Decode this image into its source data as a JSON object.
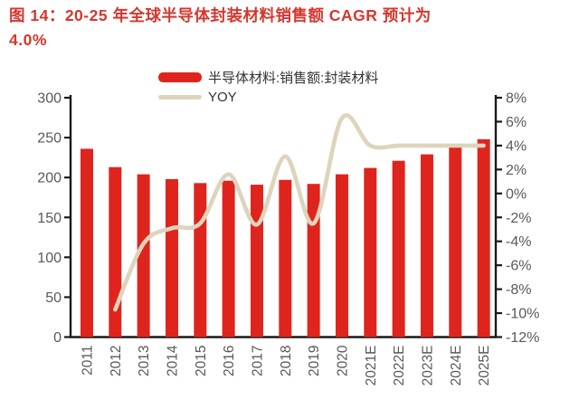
{
  "title": {
    "line1": "图 14：20-25 年全球半导体封装材料销售额 CAGR 预计为",
    "line2": "4.0%"
  },
  "legend": {
    "bar_label": "半导体材料:销售额:封装材料",
    "line_label": "YOY"
  },
  "colors": {
    "bar": "#df241d",
    "line": "#ddd4bc",
    "title": "#d6362e",
    "axis_label": "#595959",
    "spine": "#1a1a1a"
  },
  "chart_data": {
    "type": "bar",
    "title": "图 14：20-25 年全球半导体封装材料销售额 CAGR 预计为 4.0%",
    "categories": [
      "2011",
      "2012",
      "2013",
      "2014",
      "2015",
      "2016",
      "2017",
      "2018",
      "2019",
      "2020",
      "2021E",
      "2022E",
      "2023E",
      "2024E",
      "2025E"
    ],
    "series": [
      {
        "name": "半导体材料:销售额:封装材料",
        "type": "bar",
        "axis": "left",
        "values": [
          236,
          213,
          204,
          198,
          193,
          196,
          191,
          197,
          192,
          204,
          212,
          221,
          229,
          238,
          248
        ]
      },
      {
        "name": "YOY",
        "type": "line",
        "axis": "right",
        "values": [
          null,
          -9.7,
          -4.2,
          -2.9,
          -2.5,
          1.6,
          -2.6,
          3.1,
          -2.5,
          6.3,
          4.0,
          4.0,
          4.0,
          4.0,
          4.0
        ]
      }
    ],
    "left_axis": {
      "min": 0,
      "max": 300,
      "step": 50,
      "ticks": [
        "300",
        "250",
        "200",
        "150",
        "100",
        "50",
        "0"
      ]
    },
    "right_axis": {
      "min": -12,
      "max": 8,
      "step": 2,
      "ticks": [
        "8%",
        "6%",
        "4%",
        "2%",
        "0%",
        "-2%",
        "-4%",
        "-6%",
        "-8%",
        "-10%",
        "-12%"
      ]
    },
    "grid": false,
    "legend_position": "top"
  }
}
